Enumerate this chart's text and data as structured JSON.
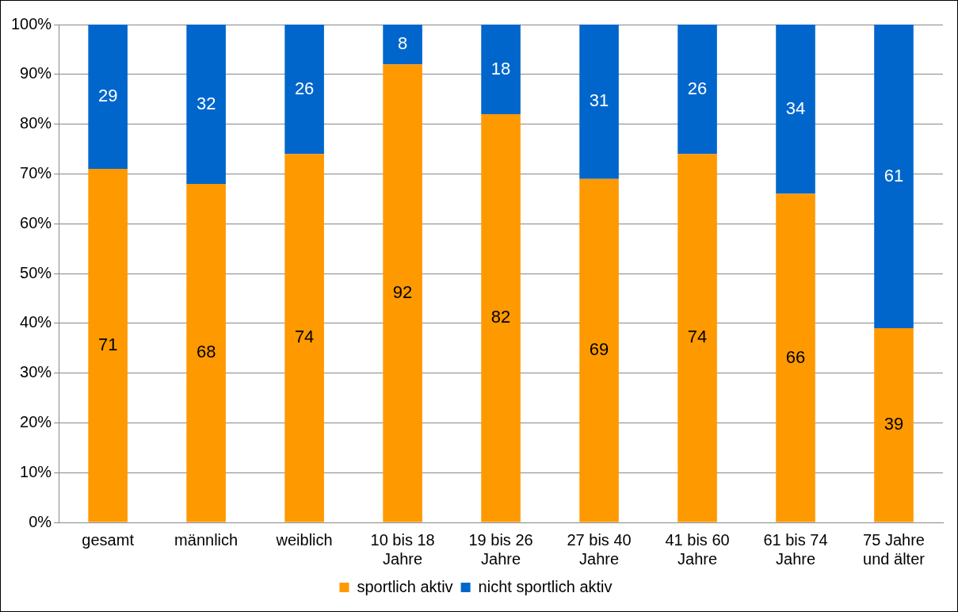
{
  "chart_data": {
    "type": "bar",
    "stacked": true,
    "categories": [
      "gesamt",
      "männlich",
      "weiblich",
      "10 bis 18 Jahre",
      "19 bis 26 Jahre",
      "27 bis 40 Jahre",
      "41 bis 60 Jahre",
      "61 bis 74 Jahre",
      "75 Jahre und älter"
    ],
    "series": [
      {
        "name": "sportlich aktiv",
        "color": "#ff9900",
        "values": [
          71,
          68,
          74,
          92,
          82,
          69,
          74,
          66,
          39
        ]
      },
      {
        "name": "nicht sportlich aktiv",
        "color": "#0066cc",
        "values": [
          29,
          32,
          26,
          8,
          18,
          31,
          26,
          34,
          61
        ]
      }
    ],
    "ylim": [
      0,
      100
    ],
    "yticks": [
      {
        "value": 0,
        "label": "0%"
      },
      {
        "value": 10,
        "label": "10%"
      },
      {
        "value": 20,
        "label": "20%"
      },
      {
        "value": 30,
        "label": "30%"
      },
      {
        "value": 40,
        "label": "40%"
      },
      {
        "value": 50,
        "label": "50%"
      },
      {
        "value": 60,
        "label": "60%"
      },
      {
        "value": 70,
        "label": "70%"
      },
      {
        "value": 80,
        "label": "80%"
      },
      {
        "value": 90,
        "label": "90%"
      },
      {
        "value": 100,
        "label": "100%"
      }
    ],
    "grid": "y",
    "legend": "bottom",
    "data_labels": true
  }
}
